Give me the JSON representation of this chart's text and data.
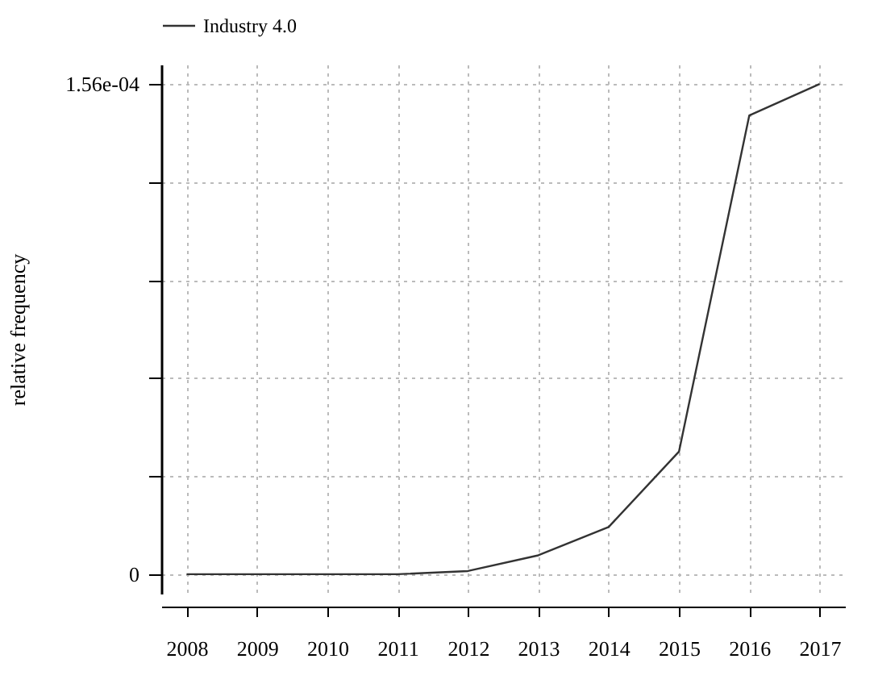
{
  "chart_data": {
    "type": "line",
    "ylabel": "relative frequency",
    "x": [
      2008,
      2009,
      2010,
      2011,
      2012,
      2013,
      2014,
      2015,
      2016,
      2017
    ],
    "series": [
      {
        "name": "Industry 4.0",
        "color": "#333333",
        "values": [
          0,
          0,
          0,
          0,
          1e-06,
          6e-06,
          1.5e-05,
          3.9e-05,
          0.000146,
          0.000156
        ]
      }
    ],
    "xlim": [
      2007.64,
      2017.36
    ],
    "xticks": [
      2008,
      2009,
      2010,
      2011,
      2012,
      2013,
      2014,
      2015,
      2016,
      2017
    ],
    "ylim": [
      -6.2e-06,
      0.0001622
    ],
    "yticks": [
      0,
      {
        "value": 3.12e-05,
        "label": null
      },
      {
        "value": 6.24e-05,
        "label": null
      },
      {
        "value": 9.36e-05,
        "label": null
      },
      {
        "value": 0.0001248,
        "label": null
      },
      {
        "value": 0.000156,
        "label": "1.56e-04"
      }
    ],
    "grid": true,
    "legend": "top",
    "line_style": "solid",
    "marker": "none"
  }
}
